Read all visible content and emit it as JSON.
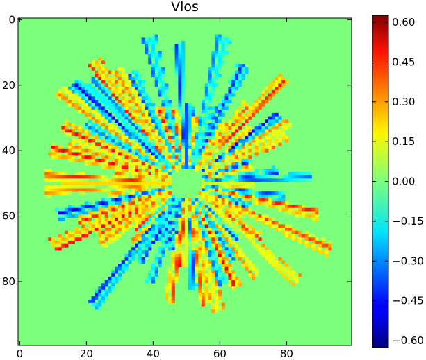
{
  "chart_data": {
    "type": "heatmap",
    "title": "Vlos",
    "xlabel": "",
    "ylabel": "",
    "grid_size": 100,
    "x_ticks": [
      0,
      20,
      40,
      60,
      80
    ],
    "y_ticks": [
      0,
      20,
      40,
      60,
      80
    ],
    "colorbar": {
      "colormap": "jet",
      "vmin": -0.6,
      "vmax": 0.6,
      "tick_labels": [
        "0.60",
        "0.45",
        "0.30",
        "0.15",
        "0.00",
        "−0.15",
        "−0.30",
        "−0.45",
        "−0.60"
      ]
    },
    "field": {
      "center": [
        50,
        50
      ],
      "inner_radius": 5,
      "outer_radius": 48,
      "description_free": true
    },
    "background_value": 0.0
  }
}
